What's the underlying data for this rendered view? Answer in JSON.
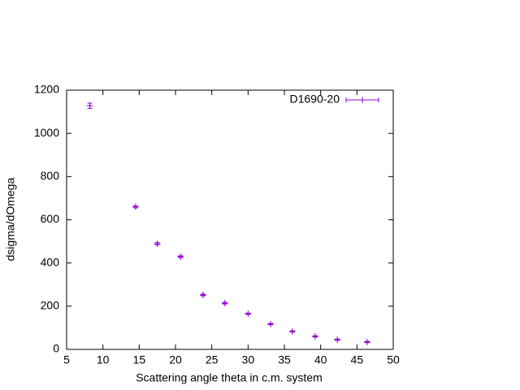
{
  "chart_data": {
    "type": "scatter",
    "xlabel": "Scattering angle theta in c.m. system",
    "ylabel": "dsigma/dOmega",
    "xlim": [
      5,
      50
    ],
    "xticks": [
      5,
      10,
      15,
      20,
      25,
      30,
      35,
      40,
      45,
      50
    ],
    "ylim": [
      0,
      1200
    ],
    "yticks": [
      0,
      200,
      400,
      600,
      800,
      1000,
      1200
    ],
    "grid": false,
    "legend": "top right",
    "series": [
      {
        "name": "D1690-20",
        "color": "#9400d3",
        "x": [
          8.2,
          14.5,
          17.5,
          20.7,
          23.8,
          26.8,
          30.0,
          33.1,
          36.1,
          39.25,
          42.3,
          46.4
        ],
        "values": [
          1128,
          660,
          489,
          429,
          252,
          214,
          165,
          117,
          83,
          60,
          45,
          34
        ],
        "errors": [
          12,
          5,
          5,
          4,
          4,
          4,
          3,
          3,
          3,
          3,
          3,
          3
        ]
      }
    ]
  }
}
